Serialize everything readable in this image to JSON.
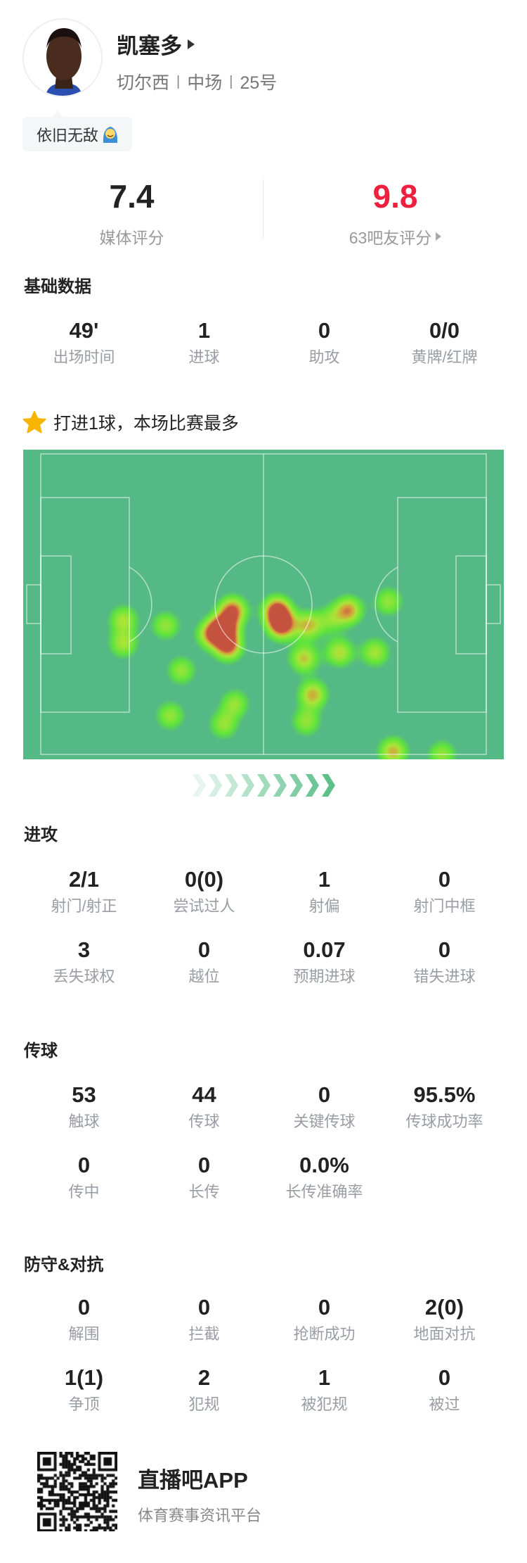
{
  "player": {
    "name": "凯塞多",
    "team": "切尔西",
    "position": "中场",
    "number": "25号",
    "tag": "依旧无敌",
    "tag_emoji_icon": "blessed-face-emoji-icon"
  },
  "ratings": {
    "media": {
      "value": "7.4",
      "label": "媒体评分"
    },
    "fans": {
      "value": "9.8",
      "label": "63吧友评分",
      "color": "#ee1f3f"
    }
  },
  "basic": {
    "title": "基础数据",
    "stats": [
      {
        "value": "49'",
        "label": "出场时间"
      },
      {
        "value": "1",
        "label": "进球"
      },
      {
        "value": "0",
        "label": "助攻"
      },
      {
        "value": "0/0",
        "label": "黄牌/红牌"
      }
    ]
  },
  "highlight": {
    "text": "打进1球，本场比赛最多",
    "icon": "star-icon",
    "color": "#f7b500"
  },
  "heatmap": {
    "pitch_color": "#55b985",
    "points": [
      {
        "x": 18.5,
        "y": 55,
        "w": 0.5
      },
      {
        "x": 18.5,
        "y": 63,
        "w": 0.5
      },
      {
        "x": 28,
        "y": 57,
        "w": 0.45
      },
      {
        "x": 43,
        "y": 52,
        "w": 0.8
      },
      {
        "x": 41,
        "y": 58,
        "w": 1.0
      },
      {
        "x": 42,
        "y": 64,
        "w": 0.8
      },
      {
        "x": 38,
        "y": 60,
        "w": 0.6
      },
      {
        "x": 53,
        "y": 52,
        "w": 0.9
      },
      {
        "x": 54,
        "y": 57,
        "w": 0.9
      },
      {
        "x": 60,
        "y": 57,
        "w": 0.6
      },
      {
        "x": 69,
        "y": 52,
        "w": 0.7
      },
      {
        "x": 65,
        "y": 55,
        "w": 0.35
      },
      {
        "x": 78,
        "y": 49,
        "w": 0.45
      },
      {
        "x": 75,
        "y": 66,
        "w": 0.5
      },
      {
        "x": 67,
        "y": 66,
        "w": 0.55
      },
      {
        "x": 59,
        "y": 68,
        "w": 0.6
      },
      {
        "x": 61,
        "y": 80,
        "w": 0.65
      },
      {
        "x": 59.5,
        "y": 89,
        "w": 0.45
      },
      {
        "x": 31.5,
        "y": 72,
        "w": 0.45
      },
      {
        "x": 29,
        "y": 87,
        "w": 0.45
      },
      {
        "x": 43.5,
        "y": 83,
        "w": 0.45
      },
      {
        "x": 41,
        "y": 90,
        "w": 0.45
      },
      {
        "x": 79,
        "y": 99,
        "w": 0.65
      },
      {
        "x": 90,
        "y": 100,
        "w": 0.45
      }
    ]
  },
  "attack": {
    "title": "进攻",
    "stats": [
      {
        "value": "2/1",
        "label": "射门/射正"
      },
      {
        "value": "0(0)",
        "label": "尝试过人"
      },
      {
        "value": "1",
        "label": "射偏"
      },
      {
        "value": "0",
        "label": "射门中框"
      },
      {
        "value": "3",
        "label": "丢失球权"
      },
      {
        "value": "0",
        "label": "越位"
      },
      {
        "value": "0.07",
        "label": "预期进球"
      },
      {
        "value": "0",
        "label": "错失进球"
      }
    ]
  },
  "passing": {
    "title": "传球",
    "stats": [
      {
        "value": "53",
        "label": "触球"
      },
      {
        "value": "44",
        "label": "传球"
      },
      {
        "value": "0",
        "label": "关键传球"
      },
      {
        "value": "95.5%",
        "label": "传球成功率"
      },
      {
        "value": "0",
        "label": "传中"
      },
      {
        "value": "0",
        "label": "长传"
      },
      {
        "value": "0.0%",
        "label": "长传准确率"
      }
    ]
  },
  "defense": {
    "title": "防守&对抗",
    "stats": [
      {
        "value": "0",
        "label": "解围"
      },
      {
        "value": "0",
        "label": "拦截"
      },
      {
        "value": "0",
        "label": "抢断成功"
      },
      {
        "value": "2(0)",
        "label": "地面对抗"
      },
      {
        "value": "1(1)",
        "label": "争顶"
      },
      {
        "value": "2",
        "label": "犯规"
      },
      {
        "value": "1",
        "label": "被犯规"
      },
      {
        "value": "0",
        "label": "被过"
      }
    ]
  },
  "footer": {
    "app_name": "直播吧APP",
    "slogan": "体育赛事资讯平台"
  }
}
